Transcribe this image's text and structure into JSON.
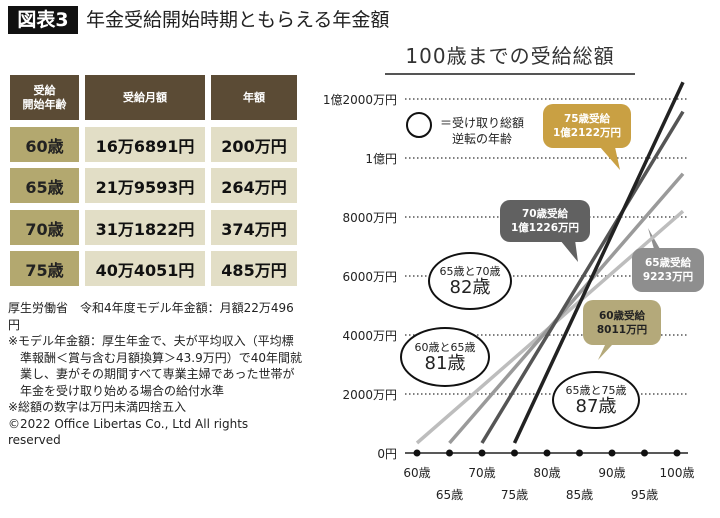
{
  "header": {
    "badge": "図表3",
    "title": "年金受給開始時期ともらえる年金額"
  },
  "table": {
    "headers": [
      "受給\n開始年齢",
      "受給月額",
      "年額"
    ],
    "rows": [
      {
        "age": "60歳",
        "monthly": "16万6891円",
        "annual": "200万円"
      },
      {
        "age": "65歳",
        "monthly": "21万9593円",
        "annual": "264万円"
      },
      {
        "age": "70歳",
        "monthly": "31万1822円",
        "annual": "374万円"
      },
      {
        "age": "75歳",
        "monthly": "40万4051円",
        "annual": "485万円"
      }
    ]
  },
  "notes": [
    "厚生労働省　令和4年度モデル年金額：月額22万496円",
    "※モデル年金額：厚生年金で、夫が平均収入（平均標準報酬＜賞与含む月額換算＞43.9万円）で40年間就業し、妻がその期間すべて専業主婦であった世帯が年金を受け取り始める場合の給付水準",
    "※総額の数字は万円未満四捨五入",
    "©2022 Office Libertas Co., Ltd All rights reserved"
  ],
  "chart_data": {
    "type": "line",
    "title": "100歳までの受給総額",
    "xlim": [
      60,
      100
    ],
    "ylim": [
      0,
      12000
    ],
    "x_ticks": [
      60,
      65,
      70,
      75,
      80,
      85,
      90,
      95,
      100
    ],
    "x_tick_labels": [
      "60歳",
      "65歳",
      "70歳",
      "75歳",
      "80歳",
      "85歳",
      "90歳",
      "95歳",
      "100歳"
    ],
    "y_ticks": [
      0,
      2000,
      4000,
      6000,
      8000,
      10000,
      12000
    ],
    "y_tick_labels": [
      "0円",
      "2000万円",
      "4000万円",
      "6000万円",
      "8000万円",
      "1億円",
      "1億2000万円"
    ],
    "grid": "horizontal dotted",
    "series": [
      {
        "start_age": 60,
        "x": [
          60,
          100
        ],
        "y": [
          0,
          8011
        ],
        "color": "#bdbdbd",
        "label": [
          "60歳受給",
          "8011万円"
        ],
        "label_color": "#b4a97a"
      },
      {
        "start_age": 65,
        "x": [
          65,
          100
        ],
        "y": [
          0,
          9223
        ],
        "color": "#9a9a9a",
        "label": [
          "65歳受給",
          "9223万円"
        ],
        "label_color": "#8e8e8e"
      },
      {
        "start_age": 70,
        "x": [
          70,
          100
        ],
        "y": [
          0,
          11226
        ],
        "color": "#555555",
        "label": [
          "70歳受給",
          "1億1226万円"
        ],
        "label_color": "#616161"
      },
      {
        "start_age": 75,
        "x": [
          75,
          100
        ],
        "y": [
          0,
          12122
        ],
        "color": "#222222",
        "label": [
          "75歳受給",
          "1億2122万円"
        ],
        "label_color": "#c9a043"
      }
    ],
    "legend": {
      "text": [
        "＝受け取り総額",
        "逆転の年齢"
      ]
    },
    "annotations": [
      {
        "pair": "65歳と70歳",
        "age": "82歳"
      },
      {
        "pair": "60歳と65歳",
        "age": "81歳"
      },
      {
        "pair": "65歳と75歳",
        "age": "87歳"
      }
    ]
  }
}
